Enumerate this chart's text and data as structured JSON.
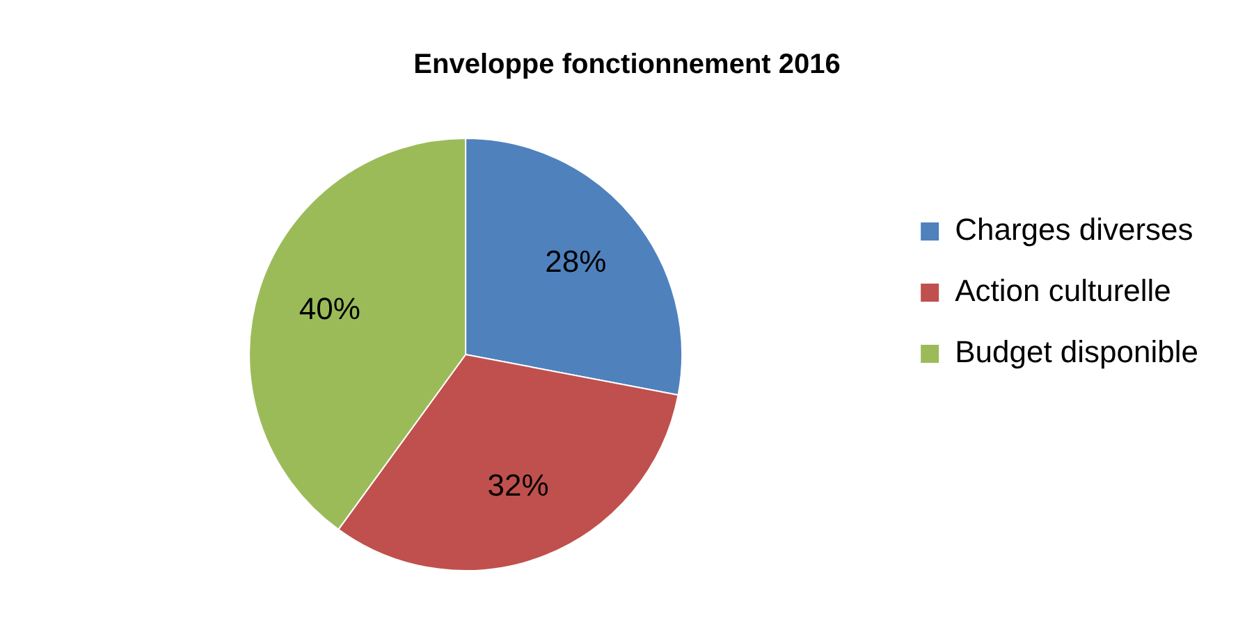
{
  "chart_data": {
    "type": "pie",
    "title": "Enveloppe fonctionnement 2016",
    "categories": [
      "Charges diverses",
      "Action culturelle",
      "Budget disponible"
    ],
    "values": [
      28,
      32,
      40
    ],
    "colors": [
      "#4f81bd",
      "#c0504d",
      "#9bbb59"
    ],
    "value_labels": [
      "28%",
      "32%",
      "40%"
    ],
    "legend": "right"
  }
}
